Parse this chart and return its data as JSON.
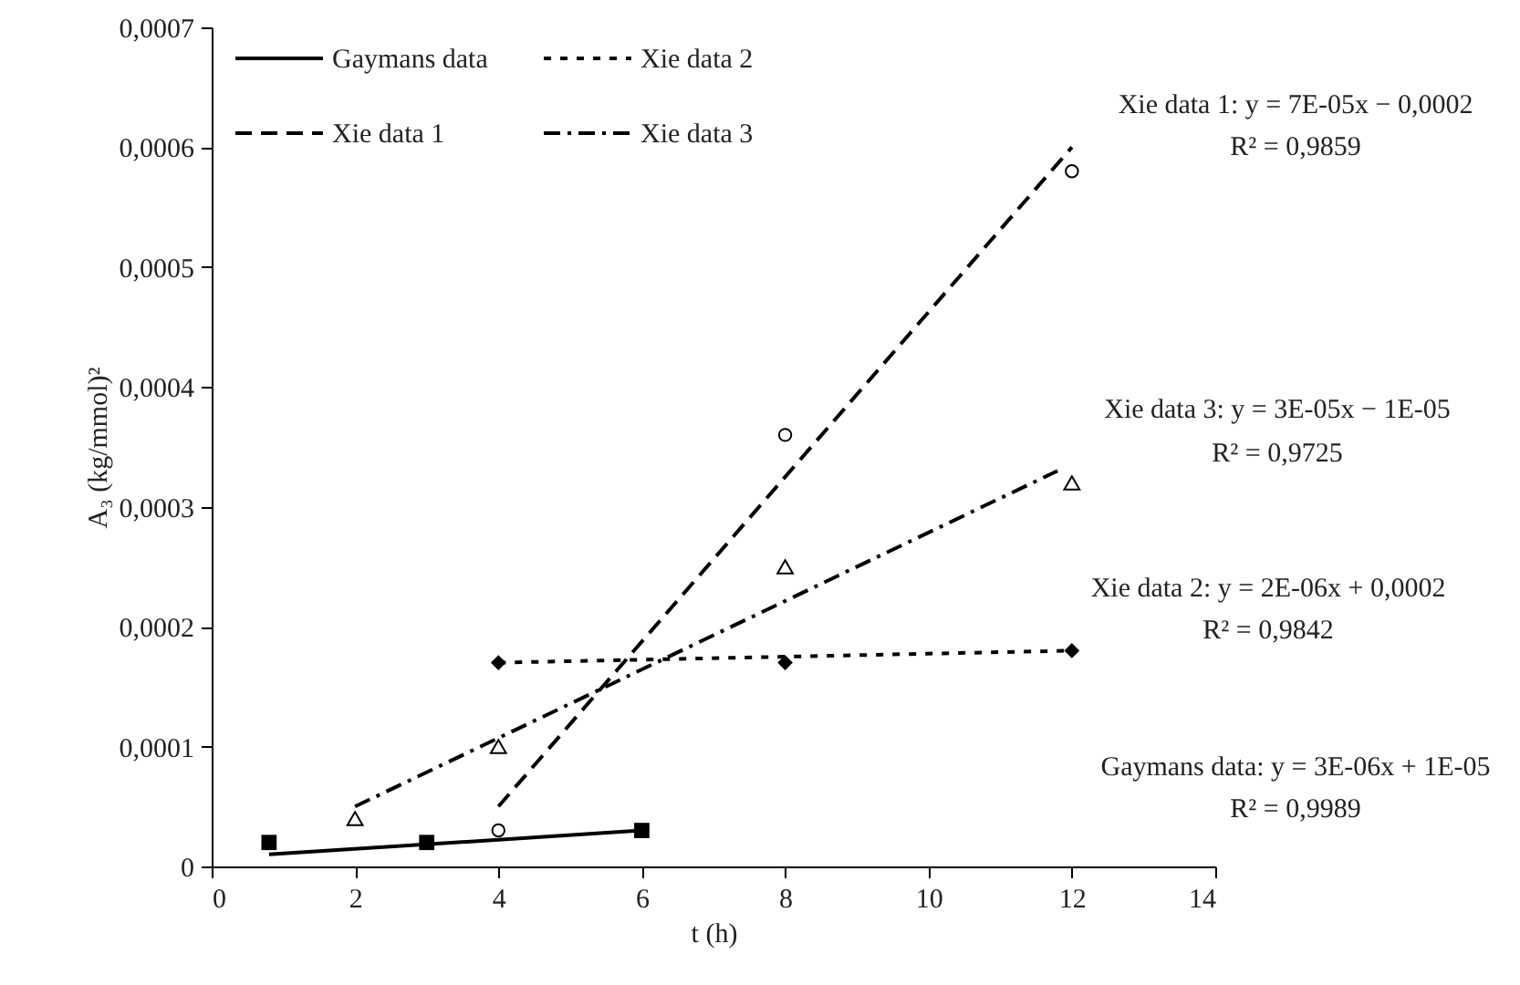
{
  "chart_data": {
    "type": "scatter",
    "xlabel": "t (h)",
    "ylabel": "A₃ (kg/mmol)²",
    "xlim": [
      0,
      14
    ],
    "xticks": [
      0,
      2,
      4,
      6,
      8,
      10,
      12,
      14
    ],
    "ylim": [
      0,
      0.0007
    ],
    "yticks": [
      {
        "value": 0,
        "label": "0"
      },
      {
        "value": 0.0001,
        "label": "0,0001"
      },
      {
        "value": 0.0002,
        "label": "0,0002"
      },
      {
        "value": 0.0003,
        "label": "0,0003"
      },
      {
        "value": 0.0004,
        "label": "0,0004"
      },
      {
        "value": 0.0005,
        "label": "0,0005"
      },
      {
        "value": 0.0006,
        "label": "0,0006"
      },
      {
        "value": 0.0007,
        "label": "0,0007"
      }
    ],
    "grid": false,
    "legend": "top left",
    "series": [
      {
        "name": "Gaymans data",
        "type": "line",
        "line_style": "solid",
        "color": "#000000",
        "x": [
          0.8,
          6
        ],
        "values": [
          1e-05,
          3e-05
        ]
      },
      {
        "name": "Xie data 1",
        "type": "line",
        "line_style": "dashed",
        "color": "#000000",
        "x": [
          4,
          12
        ],
        "values": [
          5e-05,
          0.0006
        ]
      },
      {
        "name": "Xie data 2",
        "type": "line",
        "line_style": "dotted",
        "color": "#000000",
        "x": [
          4,
          12
        ],
        "values": [
          0.00017,
          0.00018
        ]
      },
      {
        "name": "Xie data 3",
        "type": "line",
        "line_style": "dashdot",
        "color": "#000000",
        "x": [
          2,
          11.8
        ],
        "values": [
          5e-05,
          0.00033
        ]
      },
      {
        "marker": "square",
        "color": "#000000",
        "x": [
          0.8,
          3,
          6
        ],
        "values": [
          2e-05,
          2e-05,
          3e-05
        ]
      },
      {
        "marker": "circle",
        "color": "#000000",
        "x": [
          4,
          8,
          12
        ],
        "values": [
          3e-05,
          0.00036,
          0.00058
        ]
      },
      {
        "marker": "diamond",
        "color": "#000000",
        "x": [
          4,
          8,
          12
        ],
        "values": [
          0.00017,
          0.00017,
          0.00018
        ]
      },
      {
        "marker": "triangle",
        "color": "#000000",
        "x": [
          2,
          4,
          8,
          12
        ],
        "values": [
          4e-05,
          0.0001,
          0.00025,
          0.00032
        ]
      }
    ],
    "annotations": [
      "Xie data 1: y = 7E-05x − 0,0002",
      "R² = 0,9859",
      "Xie data 3: y = 3E-05x − 1E-05",
      "R² = 0,9725",
      "Xie data 2: y = 2E-06x + 0,0002",
      "R² = 0,9842",
      "Gaymans data: y = 3E-06x + 1E-05",
      "R² = 0,9989"
    ]
  }
}
